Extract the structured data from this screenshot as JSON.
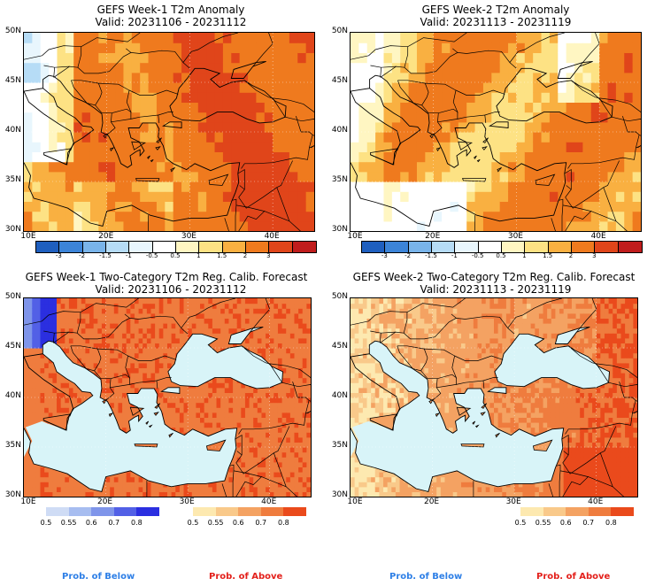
{
  "panels": [
    {
      "title1": "GEFS Week-1 T2m Anomaly",
      "title2": "Valid: 20231106 - 20231112",
      "type": "anomaly",
      "variant": 1
    },
    {
      "title1": "GEFS Week-2 T2m Anomaly",
      "title2": "Valid: 20231113 - 20231119",
      "type": "anomaly",
      "variant": 2
    },
    {
      "title1": "GEFS Week-1 Two-Category T2m Reg. Calib. Forecast",
      "title2": "Valid: 20231106 - 20231112",
      "type": "prob",
      "variant": 1
    },
    {
      "title1": "GEFS Week-2 Two-Category T2m Reg. Calib. Forecast",
      "title2": "Valid: 20231113 - 20231119",
      "type": "prob",
      "variant": 2
    }
  ],
  "lat_labels": [
    "50N",
    "45N",
    "40N",
    "35N",
    "30N"
  ],
  "lon_labels": [
    "10E",
    "20E",
    "30E",
    "40E"
  ],
  "anomaly_colorbar": {
    "ticks": [
      "-3",
      "-2",
      "-1.5",
      "-1",
      "-0.5",
      "0.5",
      "1",
      "1.5",
      "2",
      "3"
    ],
    "colors": [
      "#1f5fbf",
      "#3c84d8",
      "#79b4ea",
      "#b6dcf6",
      "#e8f6fd",
      "#ffffff",
      "#fff6c2",
      "#fde284",
      "#f9b041",
      "#ef7a1e",
      "#e0451a",
      "#c01c1c"
    ]
  },
  "prob_below": {
    "ticks": [
      "0.5",
      "0.55",
      "0.6",
      "0.7",
      "0.8"
    ],
    "colors": [
      "#cfdcf5",
      "#a7bdf0",
      "#7f95ea",
      "#5260e6",
      "#2b2fe0"
    ],
    "label": "Prob. of Below",
    "label_color": "#2e7fe6"
  },
  "prob_above": {
    "ticks": [
      "0.5",
      "0.55",
      "0.6",
      "0.7",
      "0.8"
    ],
    "colors": [
      "#fde9b0",
      "#f9c98a",
      "#f4a262",
      "#ef7c3e",
      "#ea4a1c"
    ],
    "label": "Prob. of Above",
    "label_color": "#e3201b"
  }
}
